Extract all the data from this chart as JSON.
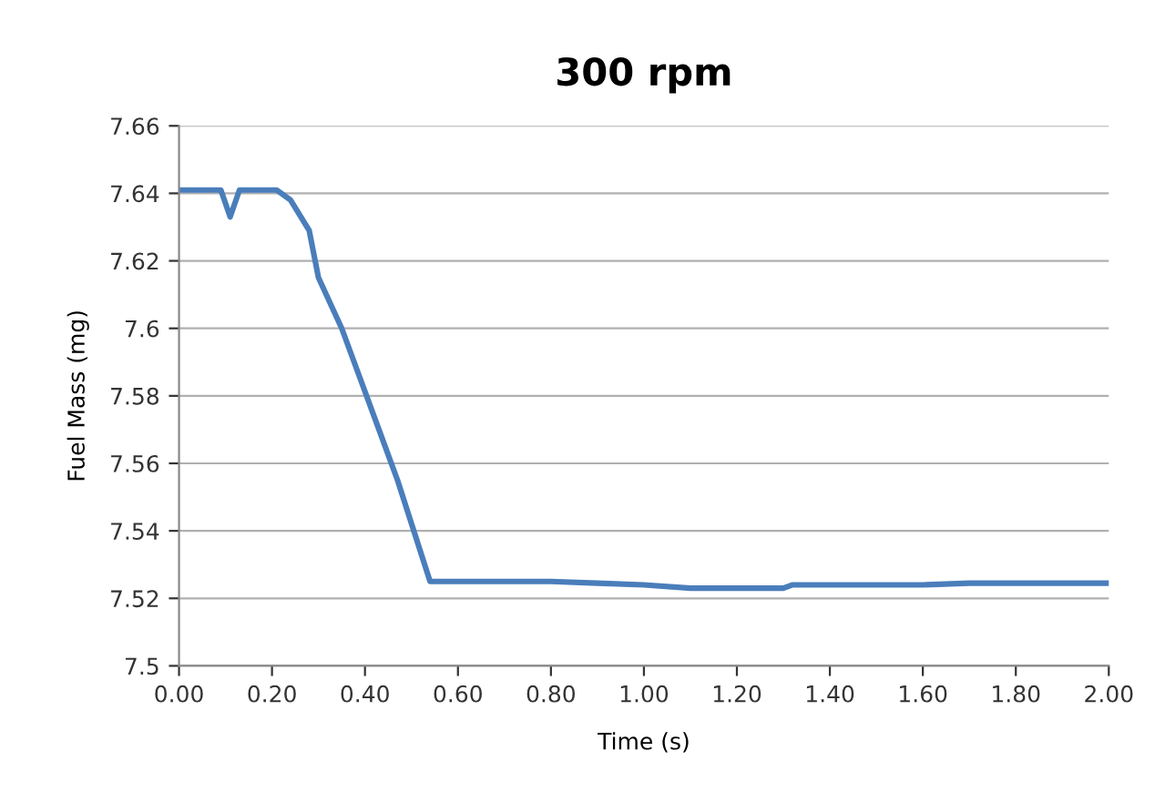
{
  "chart_data": {
    "type": "line",
    "title": "300 rpm",
    "xlabel": "Time (s)",
    "ylabel": "Fuel Mass (mg)",
    "x": [
      0,
      0.09,
      0.11,
      0.13,
      0.21,
      0.24,
      0.28,
      0.3,
      0.35,
      0.39,
      0.43,
      0.47,
      0.54,
      0.8,
      0.9,
      1.0,
      1.1,
      1.3,
      1.32,
      1.6,
      1.7,
      2.0
    ],
    "series": [
      {
        "color": "#4a7ebb",
        "values": [
          7.641,
          7.641,
          7.633,
          7.641,
          7.641,
          7.638,
          7.629,
          7.615,
          7.6,
          7.585,
          7.57,
          7.555,
          7.525,
          7.525,
          7.5245,
          7.524,
          7.523,
          7.523,
          7.524,
          7.524,
          7.5245,
          7.5245
        ]
      }
    ],
    "xlim": [
      0,
      2
    ],
    "ylim": [
      7.5,
      7.66
    ],
    "xticks": [
      {
        "value": 0,
        "label": "0.00"
      },
      {
        "value": 0.2,
        "label": "0.20"
      },
      {
        "value": 0.4,
        "label": "0.40"
      },
      {
        "value": 0.6,
        "label": "0.60"
      },
      {
        "value": 0.8,
        "label": "0.80"
      },
      {
        "value": 1.0,
        "label": "1.00"
      },
      {
        "value": 1.2,
        "label": "1.20"
      },
      {
        "value": 1.4,
        "label": "1.40"
      },
      {
        "value": 1.6,
        "label": "1.60"
      },
      {
        "value": 1.8,
        "label": "1.80"
      },
      {
        "value": 2.0,
        "label": "2.00"
      }
    ],
    "yticks": [
      {
        "value": 7.5,
        "label": "7.5"
      },
      7.52,
      7.54,
      7.56,
      7.58,
      {
        "value": 7.6,
        "label": "7.6"
      },
      7.62,
      7.64,
      7.66
    ],
    "grid": "y",
    "legend": false,
    "marker": "none",
    "line_style": "solid"
  }
}
